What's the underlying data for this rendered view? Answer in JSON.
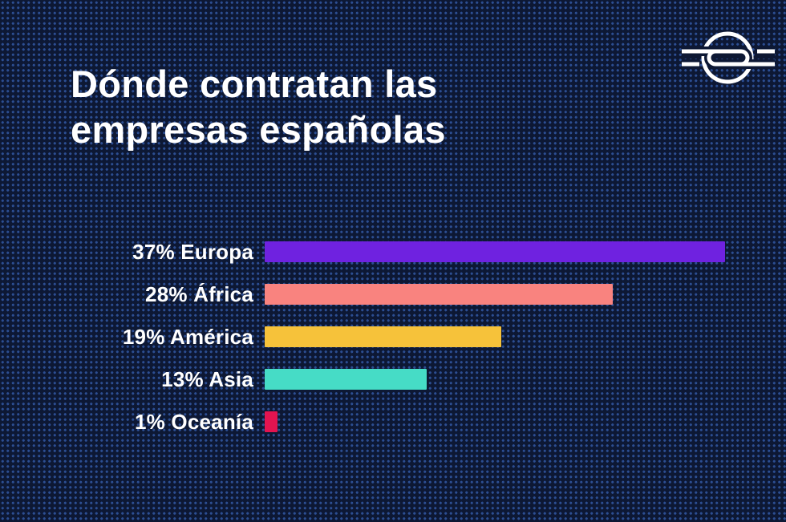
{
  "poster": {
    "background_color": "#0D1834",
    "map_dot_color": "#254280",
    "map_dot_color_bright": "#2C4E92",
    "text_color": "#FFFFFF"
  },
  "logo": {
    "name": "circular-s-monogram",
    "color": "#FFFFFF"
  },
  "header": {
    "title_line1": "Dónde contratan las",
    "title_line2": "empresas españolas"
  },
  "chart_data": {
    "type": "bar",
    "orientation": "horizontal",
    "title": "Dónde contratan las empresas españolas",
    "unit": "%",
    "categories": [
      "Europa",
      "África",
      "América",
      "Asia",
      "Oceanía"
    ],
    "values": [
      37,
      28,
      19,
      13,
      1
    ],
    "labels": [
      "37% Europa",
      "28% África",
      "19% América",
      "13% Asia",
      "1% Oceanía"
    ],
    "bar_colors": [
      "#6F22E0",
      "#F9837F",
      "#F6C23A",
      "#46DCC6",
      "#E31450"
    ],
    "xlim": [
      0,
      42
    ],
    "grid": false,
    "legend": false,
    "value_label_position": "left-of-bar"
  }
}
